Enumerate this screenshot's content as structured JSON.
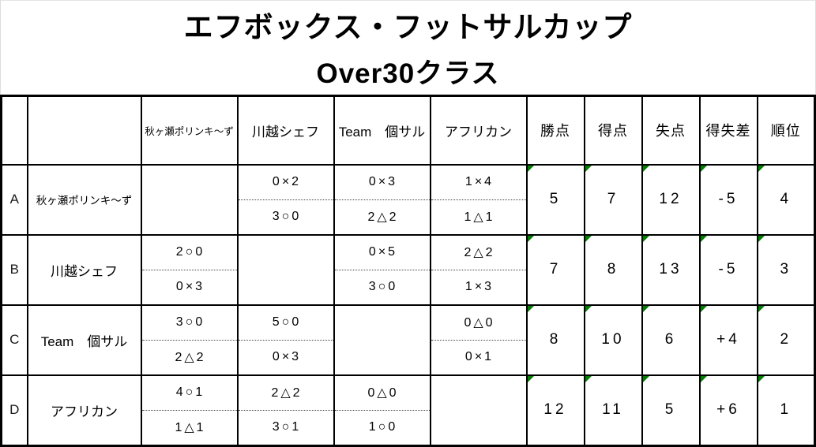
{
  "title": "エフボックス・フットサルカップ",
  "subtitle": "Over30クラス",
  "colors": {
    "self_cell_gray": "#c0c0c0",
    "error_marker_green": "#008000",
    "border_black": "#000000",
    "title_border_gray": "#d8d8d8"
  },
  "table": {
    "headers": {
      "opponents": [
        "秋ヶ瀬ポリンキ～ず",
        "川越シェフ",
        "Team　個サル",
        "アフリカン"
      ],
      "stats": [
        "勝点",
        "得点",
        "失点",
        "得失差",
        "順位"
      ]
    },
    "rows": [
      {
        "letter": "A",
        "team": "秋ヶ瀬ポリンキ～ず",
        "matches": [
          null,
          {
            "top": "0×2",
            "bottom": "3○0"
          },
          {
            "top": "0×3",
            "bottom": "2△2"
          },
          {
            "top": "1×4",
            "bottom": "1△1"
          }
        ],
        "stats": [
          "5",
          "7",
          "12",
          "-5",
          "4"
        ]
      },
      {
        "letter": "B",
        "team": "川越シェフ",
        "matches": [
          {
            "top": "2○0",
            "bottom": "0×3"
          },
          null,
          {
            "top": "0×5",
            "bottom": "3○0"
          },
          {
            "top": "2△2",
            "bottom": "1×3"
          }
        ],
        "stats": [
          "7",
          "8",
          "13",
          "-5",
          "3"
        ]
      },
      {
        "letter": "C",
        "team": "Team　個サル",
        "matches": [
          {
            "top": "3○0",
            "bottom": "2△2"
          },
          {
            "top": "5○0",
            "bottom": "0×3"
          },
          null,
          {
            "top": "0△0",
            "bottom": "0×1"
          }
        ],
        "stats": [
          "8",
          "10",
          "6",
          "+4",
          "2"
        ]
      },
      {
        "letter": "D",
        "team": "アフリカン",
        "matches": [
          {
            "top": "4○1",
            "bottom": "1△1"
          },
          {
            "top": "2△2",
            "bottom": "3○1"
          },
          {
            "top": "0△0",
            "bottom": "1○0"
          },
          null
        ],
        "stats": [
          "12",
          "11",
          "5",
          "+6",
          "1"
        ]
      }
    ]
  }
}
